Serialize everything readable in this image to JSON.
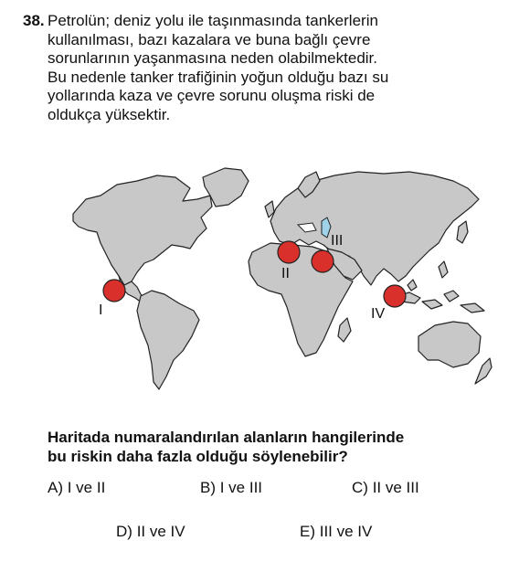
{
  "question": {
    "number": "38.",
    "stem_lines": [
      "Petrolün; deniz yolu ile taşınmasında tankerlerin",
      "kullanılması, bazı kazalara ve buna bağlı çevre",
      "sorunlarının yaşanmasına neden olabilmektedir.",
      "Bu nedenle tanker trafiğinin yoğun olduğu bazı su",
      "yollarında kaza ve çevre sorunu oluşma riski de",
      "oldukça yüksektir."
    ],
    "prompt_lines": [
      "Haritada numaralandırılan alanların hangilerinde",
      "bu riskin daha fazla olduğu söylenebilir?"
    ]
  },
  "map": {
    "land_color": "#c8c8c8",
    "outline_color": "#222222",
    "water_color": "#9fd3ea",
    "marker_color": "#d9302b",
    "markers": [
      {
        "label": "I",
        "location": "Panama Kanalı"
      },
      {
        "label": "II",
        "location": "Süveyş Kanalı"
      },
      {
        "label": "III",
        "location": "Hürmüz Boğazı"
      },
      {
        "label": "IV",
        "location": "Malakka Boğazı"
      }
    ]
  },
  "options": [
    {
      "letter": "A)",
      "text": "I ve II"
    },
    {
      "letter": "B)",
      "text": "I ve III"
    },
    {
      "letter": "C)",
      "text": "II ve III"
    },
    {
      "letter": "D)",
      "text": "II ve IV"
    },
    {
      "letter": "E)",
      "text": "III ve IV"
    }
  ]
}
